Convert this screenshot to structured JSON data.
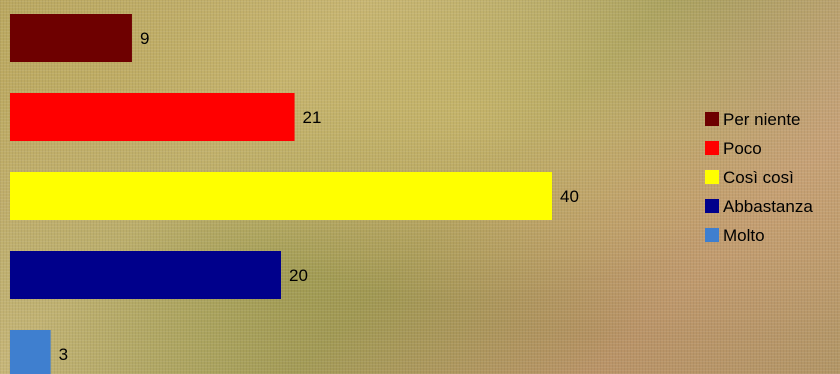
{
  "chart_data": {
    "type": "bar",
    "orientation": "horizontal",
    "categories": [
      "Per niente",
      "Poco",
      "Così così",
      "Abbastanza",
      "Molto"
    ],
    "values": [
      9,
      21,
      40,
      20,
      3
    ],
    "colors": [
      "#6E0000",
      "#FF0000",
      "#FFFF00",
      "#00008B",
      "#3F7FCF"
    ],
    "title": "",
    "xlabel": "",
    "ylabel": "",
    "grid": false,
    "legend_position": "right",
    "data_labels": true
  }
}
